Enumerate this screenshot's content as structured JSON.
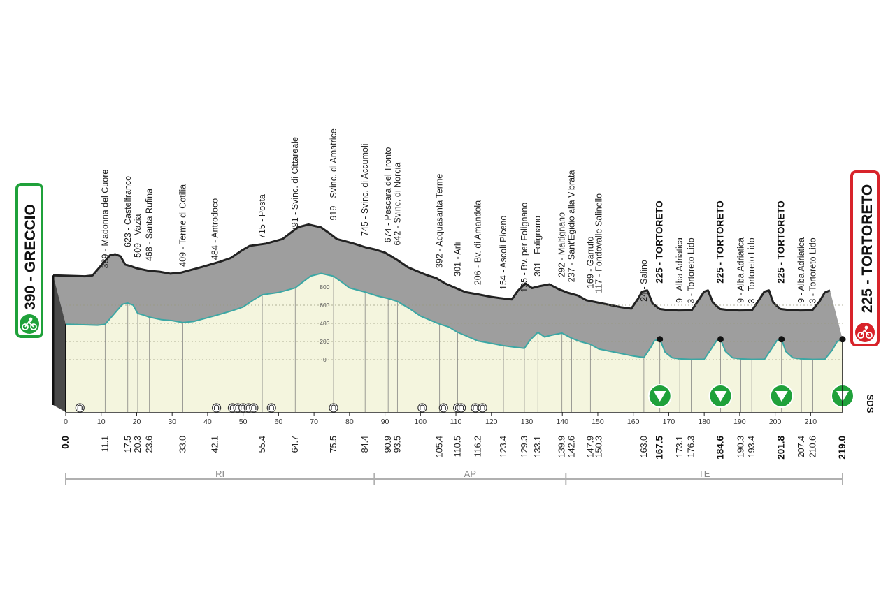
{
  "chart_data": {
    "type": "area",
    "title": "",
    "xlabel": "",
    "ylabel": "",
    "xlim": [
      0,
      219
    ],
    "ylim": [
      0,
      1000
    ],
    "grid": true,
    "colors": {
      "profile_fill": "#f4f5de",
      "profile_line": "#222222",
      "relief": "#9e9e9e",
      "start": "#1fa13a",
      "finish": "#d8232a",
      "sprint": "#1fa13a"
    },
    "start": {
      "name": "390 - GRECCIO",
      "km": 0,
      "alt": 390
    },
    "finish": {
      "name": "225 - TORTORETO",
      "km": 219,
      "alt": 225
    },
    "brand": "SDS",
    "x_ticks": [
      0,
      10,
      20,
      30,
      40,
      50,
      60,
      70,
      80,
      90,
      100,
      110,
      120,
      130,
      140,
      150,
      160,
      170,
      180,
      190,
      200,
      210
    ],
    "alt_ticks": [
      "800",
      "600",
      "400",
      "200",
      "0"
    ],
    "waypoints": [
      {
        "km": 11.1,
        "alt": 389,
        "label": "389 - Madonna del Cuore"
      },
      {
        "km": 17.5,
        "alt": 623,
        "label": "623 - Castelfranco"
      },
      {
        "km": 20.3,
        "alt": 509,
        "label": "509 - Vazia"
      },
      {
        "km": 23.6,
        "alt": 468,
        "label": "468 - Santa Rufina"
      },
      {
        "km": 33.0,
        "alt": 409,
        "label": "409 - Terme di Cotilia"
      },
      {
        "km": 42.1,
        "alt": 484,
        "label": "484 - Antrodoco"
      },
      {
        "km": 55.4,
        "alt": 715,
        "label": "715 - Posta"
      },
      {
        "km": 64.7,
        "alt": 791,
        "label": "791 - Svinc. di Cittareale"
      },
      {
        "km": 75.5,
        "alt": 919,
        "label": "919 - Svinc. di Amatrice"
      },
      {
        "km": 84.4,
        "alt": 745,
        "label": "745 - Svinc. di Accumoli"
      },
      {
        "km": 90.9,
        "alt": 674,
        "label": "674 - Pescara del Tronto"
      },
      {
        "km": 93.5,
        "alt": 642,
        "label": "642 - Svinc. di Norcia"
      },
      {
        "km": 105.4,
        "alt": 392,
        "label": "392 - Acquasanta Terme"
      },
      {
        "km": 110.5,
        "alt": 301,
        "label": "301 - Arli"
      },
      {
        "km": 116.2,
        "alt": 206,
        "label": "206 - Bv. di Amandola"
      },
      {
        "km": 123.4,
        "alt": 154,
        "label": "154 - Ascoli Piceno"
      },
      {
        "km": 129.3,
        "alt": 125,
        "label": "125 - Bv. per Folignano"
      },
      {
        "km": 133.1,
        "alt": 301,
        "label": "301 - Folignano"
      },
      {
        "km": 139.9,
        "alt": 292,
        "label": "292 - Maltignano"
      },
      {
        "km": 142.6,
        "alt": 237,
        "label": "237 - Sant'Egidio alla Vibrata"
      },
      {
        "km": 147.9,
        "alt": 169,
        "label": "169 - Garrufo"
      },
      {
        "km": 150.3,
        "alt": 117,
        "label": "117 - Fondovalle Salinello"
      },
      {
        "km": 163.0,
        "alt": 24,
        "label": "24 - Salino"
      },
      {
        "km": 167.5,
        "alt": 225,
        "label": "225 - TORTORETO",
        "bold": true
      },
      {
        "km": 173.1,
        "alt": 9,
        "label": "9 - Alba Adriatica"
      },
      {
        "km": 176.3,
        "alt": 3,
        "label": "3 - Tortoreto Lido"
      },
      {
        "km": 184.6,
        "alt": 225,
        "label": "225 - TORTORETO",
        "bold": true
      },
      {
        "km": 190.3,
        "alt": 9,
        "label": "9 - Alba Adriatica"
      },
      {
        "km": 193.4,
        "alt": 3,
        "label": "3 - Tortoreto Lido"
      },
      {
        "km": 201.8,
        "alt": 225,
        "label": "225 - TORTORETO",
        "bold": true
      },
      {
        "km": 207.4,
        "alt": 9,
        "label": "9 - Alba Adriatica"
      },
      {
        "km": 210.6,
        "alt": 3,
        "label": "3 - Tortoreto Lido"
      }
    ],
    "profile": [
      [
        0,
        390
      ],
      [
        5,
        385
      ],
      [
        9,
        380
      ],
      [
        11.1,
        389
      ],
      [
        14,
        520
      ],
      [
        16,
        610
      ],
      [
        17.5,
        623
      ],
      [
        19,
        600
      ],
      [
        20.3,
        509
      ],
      [
        22,
        490
      ],
      [
        23.6,
        468
      ],
      [
        27,
        440
      ],
      [
        30,
        430
      ],
      [
        33,
        409
      ],
      [
        36,
        420
      ],
      [
        42.1,
        484
      ],
      [
        47,
        540
      ],
      [
        50,
        580
      ],
      [
        53,
        660
      ],
      [
        55.4,
        715
      ],
      [
        60,
        740
      ],
      [
        64.7,
        791
      ],
      [
        67,
        860
      ],
      [
        69,
        920
      ],
      [
        72,
        950
      ],
      [
        75.5,
        919
      ],
      [
        78,
        850
      ],
      [
        80,
        790
      ],
      [
        84.4,
        745
      ],
      [
        88,
        700
      ],
      [
        90.9,
        674
      ],
      [
        93.5,
        642
      ],
      [
        97,
        560
      ],
      [
        100,
        480
      ],
      [
        103,
        430
      ],
      [
        105.4,
        392
      ],
      [
        108,
        360
      ],
      [
        110.5,
        301
      ],
      [
        113,
        260
      ],
      [
        116.2,
        206
      ],
      [
        120,
        180
      ],
      [
        123.4,
        154
      ],
      [
        126,
        140
      ],
      [
        129.3,
        125
      ],
      [
        131,
        220
      ],
      [
        133.1,
        301
      ],
      [
        135,
        250
      ],
      [
        137,
        270
      ],
      [
        139.9,
        292
      ],
      [
        142.6,
        237
      ],
      [
        145,
        200
      ],
      [
        147.9,
        169
      ],
      [
        150.3,
        117
      ],
      [
        155,
        80
      ],
      [
        160,
        40
      ],
      [
        163.0,
        24
      ],
      [
        165,
        140
      ],
      [
        166,
        210
      ],
      [
        167.5,
        225
      ],
      [
        169,
        80
      ],
      [
        171,
        20
      ],
      [
        173.1,
        9
      ],
      [
        176.3,
        3
      ],
      [
        180,
        5
      ],
      [
        182,
        120
      ],
      [
        183.5,
        210
      ],
      [
        184.6,
        225
      ],
      [
        186,
        90
      ],
      [
        188,
        20
      ],
      [
        190.3,
        9
      ],
      [
        193.4,
        3
      ],
      [
        197,
        5
      ],
      [
        199,
        120
      ],
      [
        200.5,
        210
      ],
      [
        201.8,
        225
      ],
      [
        203,
        90
      ],
      [
        205,
        20
      ],
      [
        207.4,
        9
      ],
      [
        210.6,
        3
      ],
      [
        214,
        5
      ],
      [
        216,
        100
      ],
      [
        217.5,
        200
      ],
      [
        219,
        225
      ]
    ],
    "intermediate_sprints_km": [
      167.5,
      184.6,
      201.8,
      219.0
    ],
    "tunnels_km": [
      4,
      42.5,
      47,
      48.5,
      50,
      51.5,
      53,
      58,
      75.5,
      100.5,
      106.5,
      110.5,
      111.5,
      115.5,
      117.5
    ],
    "provinces": [
      {
        "label": "RI",
        "from": 0,
        "to": 87
      },
      {
        "label": "AP",
        "from": 87,
        "to": 141
      },
      {
        "label": "TE",
        "from": 141,
        "to": 219
      }
    ]
  }
}
